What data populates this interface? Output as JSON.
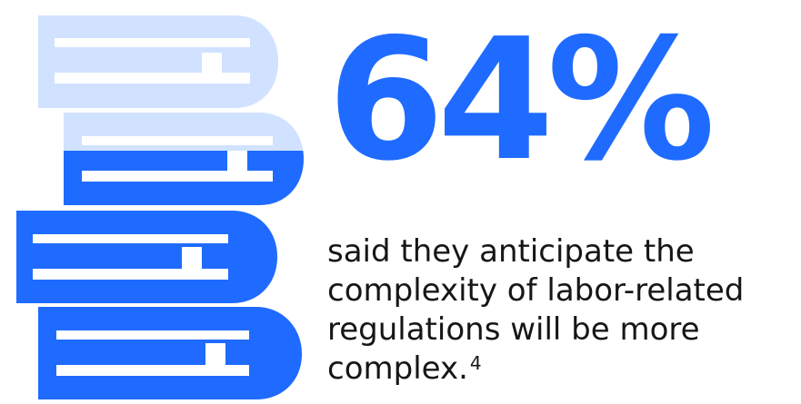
{
  "stat": {
    "value": "64%",
    "caption": "said they anticipate the complexity of labor-related regulations will be more complex.",
    "footnote": "4"
  },
  "colors": {
    "accent": "#1f6bff",
    "accent_light": "#d0e2ff",
    "text": "#161616",
    "background": "#ffffff"
  },
  "illustration": {
    "icon": "stack-of-books-icon",
    "book_count": 4
  }
}
